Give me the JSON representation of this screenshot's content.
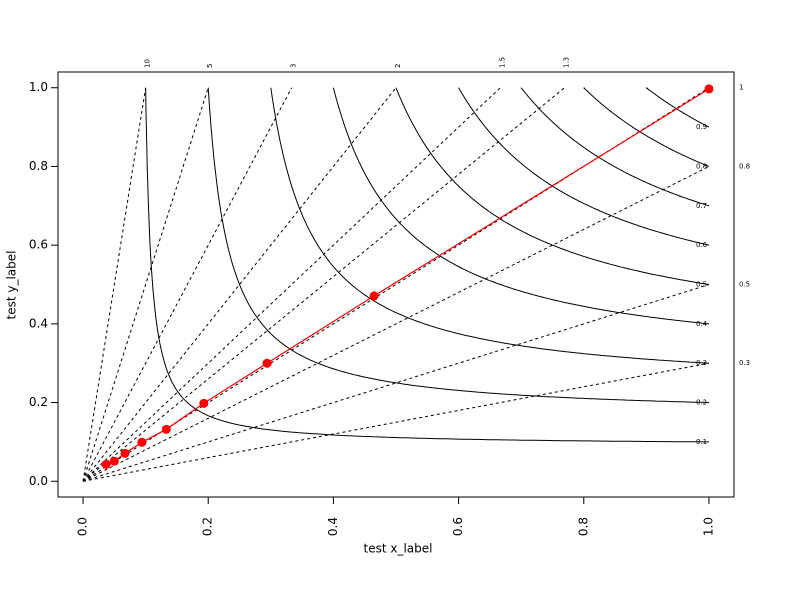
{
  "chart_data": {
    "type": "line",
    "x_label": "test x_label",
    "y_label": "test y_label",
    "xlim": [
      -0.04,
      1.04
    ],
    "ylim": [
      -0.04,
      1.04
    ],
    "xticks": [
      {
        "value": 0,
        "label": "0.0"
      },
      0.2,
      0.4,
      0.6,
      0.8,
      {
        "value": 1,
        "label": "1.0"
      }
    ],
    "yticks": [
      {
        "value": 0,
        "label": "0.0"
      },
      0.2,
      0.4,
      0.6,
      0.8,
      {
        "value": 1,
        "label": "1.0"
      }
    ],
    "series": [
      {
        "color": "#ff0000",
        "x": [
          0.037,
          0.05,
          0.067,
          0.094,
          0.133,
          0.193,
          0.294,
          0.465,
          1.0
        ],
        "values": [
          0.043,
          0.051,
          0.071,
          0.099,
          0.132,
          0.198,
          0.3,
          0.471,
          0.997
        ]
      }
    ],
    "level_curves": [
      0.1,
      0.2,
      0.3,
      0.4,
      0.5,
      0.6,
      0.7,
      0.8,
      0.9
    ],
    "ratio_lines": [
      {
        "value": 10,
        "label": "10"
      },
      5,
      3,
      2,
      1.5,
      1.3,
      1,
      0.8,
      0.5,
      0.3
    ]
  }
}
